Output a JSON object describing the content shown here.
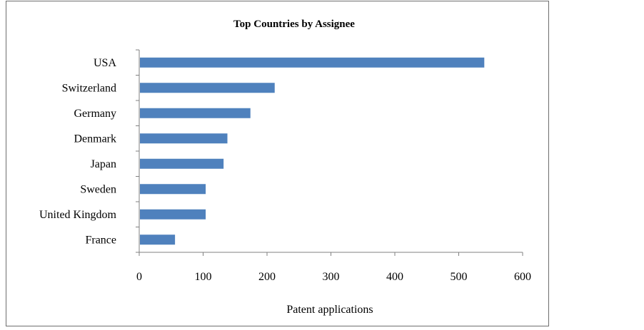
{
  "chart_data": {
    "type": "bar",
    "orientation": "horizontal",
    "title": "Top Countries by Assignee",
    "xlabel": "Patent applications",
    "ylabel": "",
    "categories": [
      "USA",
      "Switzerland",
      "Germany",
      "Denmark",
      "Japan",
      "Sweden",
      "United Kingdom",
      "France"
    ],
    "values": [
      540,
      212,
      174,
      138,
      132,
      104,
      104,
      56
    ],
    "xlim": [
      0,
      600
    ],
    "xticks": [
      "0",
      "100",
      "200",
      "300",
      "400",
      "500",
      "600"
    ],
    "grid": false,
    "legend": "none",
    "bar_color": "#4f81bd"
  }
}
